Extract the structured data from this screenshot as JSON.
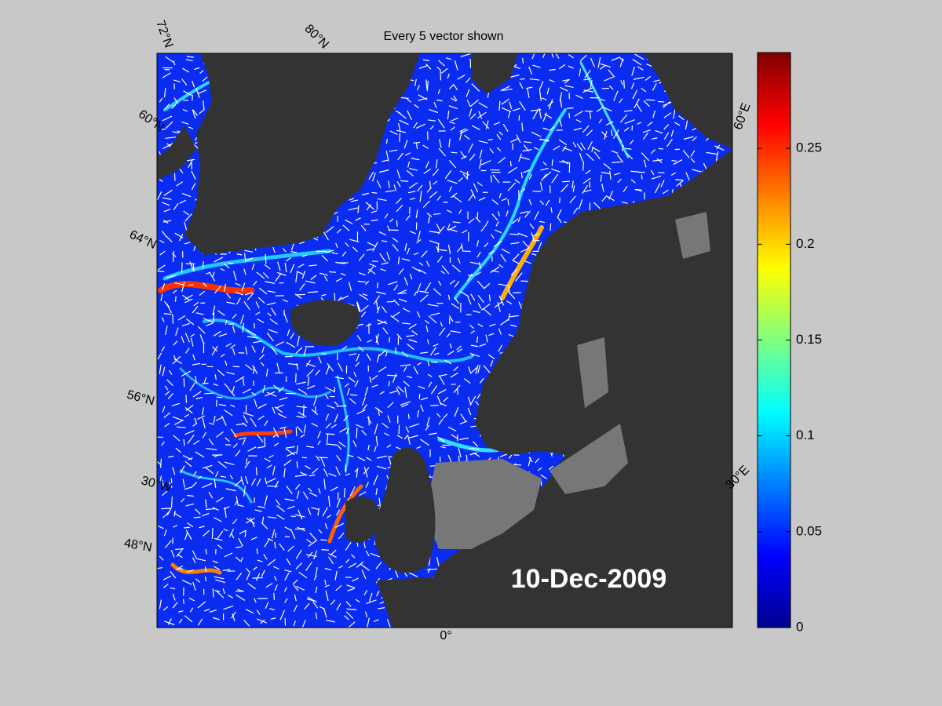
{
  "title": "Every 5 vector shown",
  "date_label": "10-Dec-2009",
  "graticule_labels": [
    "72°N",
    "80°N",
    "60°N",
    "64°N",
    "56°N",
    "30°W",
    "48°N",
    "0°",
    "60°E",
    "30°E"
  ],
  "colorbar": {
    "lim": [
      0,
      0.3
    ],
    "ticks": [
      0,
      0.05,
      0.1,
      0.15,
      0.2,
      0.25
    ]
  }
}
